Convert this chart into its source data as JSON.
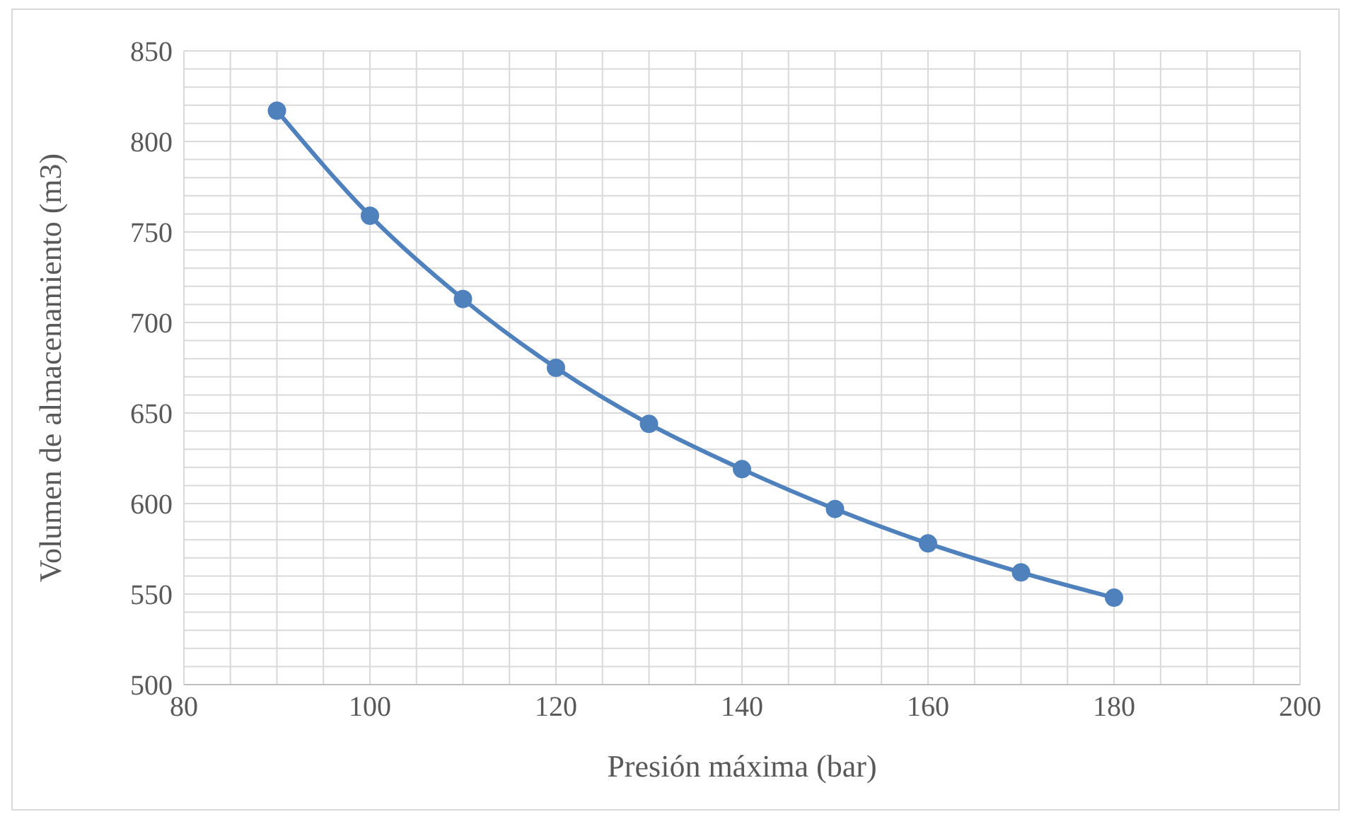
{
  "chart_data": {
    "type": "line",
    "xlabel": "Presión máxima (bar)",
    "ylabel": "Volumen de almacenamiento (m3)",
    "x": [
      90,
      100,
      110,
      120,
      130,
      140,
      150,
      160,
      170,
      180
    ],
    "series": [
      {
        "color": "#4f81bd",
        "values": [
          817,
          759,
          713,
          675,
          644,
          619,
          597,
          578,
          562,
          548
        ]
      }
    ],
    "xlim": [
      80,
      200
    ],
    "xticks": [
      80,
      {
        "value": 85,
        "label": null
      },
      {
        "value": 90,
        "label": null
      },
      {
        "value": 95,
        "label": null
      },
      100,
      {
        "value": 105,
        "label": null
      },
      {
        "value": 110,
        "label": null
      },
      {
        "value": 115,
        "label": null
      },
      120,
      {
        "value": 125,
        "label": null
      },
      {
        "value": 130,
        "label": null
      },
      {
        "value": 135,
        "label": null
      },
      140,
      {
        "value": 145,
        "label": null
      },
      {
        "value": 150,
        "label": null
      },
      {
        "value": 155,
        "label": null
      },
      160,
      {
        "value": 165,
        "label": null
      },
      {
        "value": 170,
        "label": null
      },
      {
        "value": 175,
        "label": null
      },
      180,
      {
        "value": 185,
        "label": null
      },
      {
        "value": 190,
        "label": null
      },
      {
        "value": 195,
        "label": null
      },
      200
    ],
    "ylim": [
      500,
      850
    ],
    "yticks": [
      500,
      {
        "value": 510,
        "label": null
      },
      {
        "value": 520,
        "label": null
      },
      {
        "value": 530,
        "label": null
      },
      {
        "value": 540,
        "label": null
      },
      550,
      {
        "value": 560,
        "label": null
      },
      {
        "value": 570,
        "label": null
      },
      {
        "value": 580,
        "label": null
      },
      {
        "value": 590,
        "label": null
      },
      600,
      {
        "value": 610,
        "label": null
      },
      {
        "value": 620,
        "label": null
      },
      {
        "value": 630,
        "label": null
      },
      {
        "value": 640,
        "label": null
      },
      650,
      {
        "value": 660,
        "label": null
      },
      {
        "value": 670,
        "label": null
      },
      {
        "value": 680,
        "label": null
      },
      {
        "value": 690,
        "label": null
      },
      700,
      {
        "value": 710,
        "label": null
      },
      {
        "value": 720,
        "label": null
      },
      {
        "value": 730,
        "label": null
      },
      {
        "value": 740,
        "label": null
      },
      750,
      {
        "value": 760,
        "label": null
      },
      {
        "value": 770,
        "label": null
      },
      {
        "value": 780,
        "label": null
      },
      {
        "value": 790,
        "label": null
      },
      800,
      {
        "value": 810,
        "label": null
      },
      {
        "value": 820,
        "label": null
      },
      {
        "value": 830,
        "label": null
      },
      {
        "value": 840,
        "label": null
      },
      850
    ],
    "grid": true,
    "marker": "circle",
    "line_style": "solid"
  }
}
